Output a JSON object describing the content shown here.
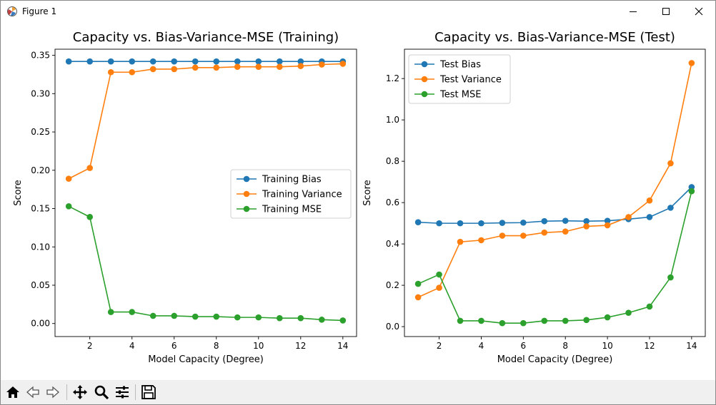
{
  "window": {
    "title": "Figure 1"
  },
  "toolbar": {
    "buttons": [
      {
        "name": "home-icon"
      },
      {
        "name": "back-arrow-icon"
      },
      {
        "name": "forward-arrow-icon"
      },
      {
        "name": "pan-icon"
      },
      {
        "name": "zoom-icon"
      },
      {
        "name": "configure-subplots-icon"
      },
      {
        "name": "save-icon"
      }
    ]
  },
  "colors": {
    "bias": "#1f77b4",
    "variance": "#ff7f0e",
    "mse": "#2ca02c"
  },
  "chart_data": [
    {
      "type": "line",
      "title": "Capacity vs. Bias-Variance-MSE (Training)",
      "xlabel": "Model Capacity (Degree)",
      "ylabel": "Score",
      "xlim": [
        0.35,
        14.65
      ],
      "ylim": [
        -0.017,
        0.358
      ],
      "xticks": [
        2,
        4,
        6,
        8,
        10,
        12,
        14
      ],
      "xtick_labels": [
        "2",
        "4",
        "6",
        "8",
        "10",
        "12",
        "14"
      ],
      "yticks": [
        0.0,
        0.05,
        0.1,
        0.15,
        0.2,
        0.25,
        0.3,
        0.35
      ],
      "ytick_labels": [
        "0.00",
        "0.05",
        "0.10",
        "0.15",
        "0.20",
        "0.25",
        "0.30",
        "0.35"
      ],
      "legend_position": "center-right",
      "x": [
        1,
        2,
        3,
        4,
        5,
        6,
        7,
        8,
        9,
        10,
        11,
        12,
        13,
        14
      ],
      "series": [
        {
          "name": "Training Bias",
          "color": "#1f77b4",
          "values": [
            0.342,
            0.342,
            0.342,
            0.342,
            0.342,
            0.342,
            0.342,
            0.342,
            0.342,
            0.342,
            0.342,
            0.342,
            0.342,
            0.342
          ]
        },
        {
          "name": "Training Variance",
          "color": "#ff7f0e",
          "values": [
            0.189,
            0.203,
            0.328,
            0.328,
            0.332,
            0.332,
            0.334,
            0.334,
            0.335,
            0.335,
            0.335,
            0.336,
            0.338,
            0.339
          ]
        },
        {
          "name": "Training MSE",
          "color": "#2ca02c",
          "values": [
            0.153,
            0.139,
            0.015,
            0.015,
            0.01,
            0.01,
            0.009,
            0.009,
            0.008,
            0.008,
            0.007,
            0.007,
            0.005,
            0.004
          ]
        }
      ]
    },
    {
      "type": "line",
      "title": "Capacity vs. Bias-Variance-MSE (Test)",
      "xlabel": "Model Capacity (Degree)",
      "ylabel": "Score",
      "xlim": [
        0.35,
        14.65
      ],
      "ylim": [
        -0.048,
        1.342
      ],
      "xticks": [
        2,
        4,
        6,
        8,
        10,
        12,
        14
      ],
      "xtick_labels": [
        "2",
        "4",
        "6",
        "8",
        "10",
        "12",
        "14"
      ],
      "yticks": [
        0.0,
        0.2,
        0.4,
        0.6,
        0.8,
        1.0,
        1.2
      ],
      "ytick_labels": [
        "0.0",
        "0.2",
        "0.4",
        "0.6",
        "0.8",
        "1.0",
        "1.2"
      ],
      "legend_position": "upper-left",
      "x": [
        1,
        2,
        3,
        4,
        5,
        6,
        7,
        8,
        9,
        10,
        11,
        12,
        13,
        14
      ],
      "series": [
        {
          "name": "Test Bias",
          "color": "#1f77b4",
          "values": [
            0.505,
            0.5,
            0.5,
            0.5,
            0.502,
            0.503,
            0.51,
            0.512,
            0.51,
            0.512,
            0.52,
            0.53,
            0.575,
            0.675
          ]
        },
        {
          "name": "Test Variance",
          "color": "#ff7f0e",
          "values": [
            0.142,
            0.188,
            0.41,
            0.418,
            0.44,
            0.44,
            0.455,
            0.46,
            0.485,
            0.49,
            0.53,
            0.61,
            0.79,
            1.275
          ]
        },
        {
          "name": "Test MSE",
          "color": "#2ca02c",
          "values": [
            0.207,
            0.252,
            0.028,
            0.028,
            0.017,
            0.017,
            0.028,
            0.028,
            0.032,
            0.045,
            0.067,
            0.097,
            0.238,
            0.655
          ]
        }
      ]
    }
  ]
}
